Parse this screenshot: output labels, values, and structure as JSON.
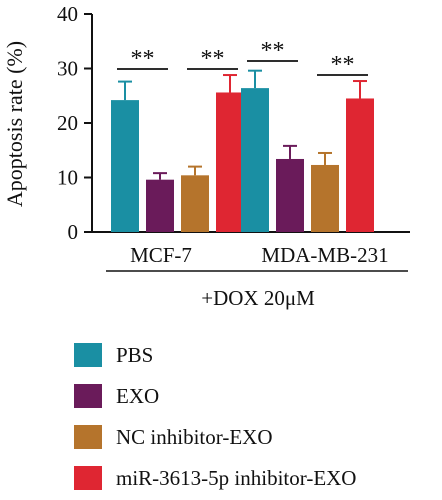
{
  "chart_data": {
    "type": "bar",
    "title": "",
    "ylabel": "Apoptosis rate (%)",
    "xlabel": "+DOX 20μM",
    "ylim": [
      0,
      40
    ],
    "yticks": [
      0,
      10,
      20,
      30,
      40
    ],
    "categories": [
      "MCF-7",
      "MDA-MB-231"
    ],
    "series": [
      {
        "name": "PBS",
        "color": "#1a8fa3",
        "values": [
          24.2,
          26.4
        ],
        "errors": [
          3.4,
          3.2
        ]
      },
      {
        "name": "EXO",
        "color": "#6a1b5a",
        "values": [
          9.6,
          13.4
        ],
        "errors": [
          1.2,
          2.4
        ]
      },
      {
        "name": "NC inhibitor-EXO",
        "color": "#b5742c",
        "values": [
          10.4,
          12.3
        ],
        "errors": [
          1.6,
          2.2
        ]
      },
      {
        "name": "miR-3613-5p inhibitor-EXO",
        "color": "#df2632",
        "values": [
          25.6,
          24.5
        ],
        "errors": [
          3.2,
          3.2
        ]
      }
    ],
    "significance": [
      {
        "category": "MCF-7",
        "from_series": 0,
        "to_series": 1,
        "label": "**"
      },
      {
        "category": "MCF-7",
        "from_series": 2,
        "to_series": 3,
        "label": "**"
      },
      {
        "category": "MDA-MB-231",
        "from_series": 0,
        "to_series": 1,
        "label": "**"
      },
      {
        "category": "MDA-MB-231",
        "from_series": 2,
        "to_series": 3,
        "label": "**"
      }
    ],
    "legend_position": "bottom"
  }
}
